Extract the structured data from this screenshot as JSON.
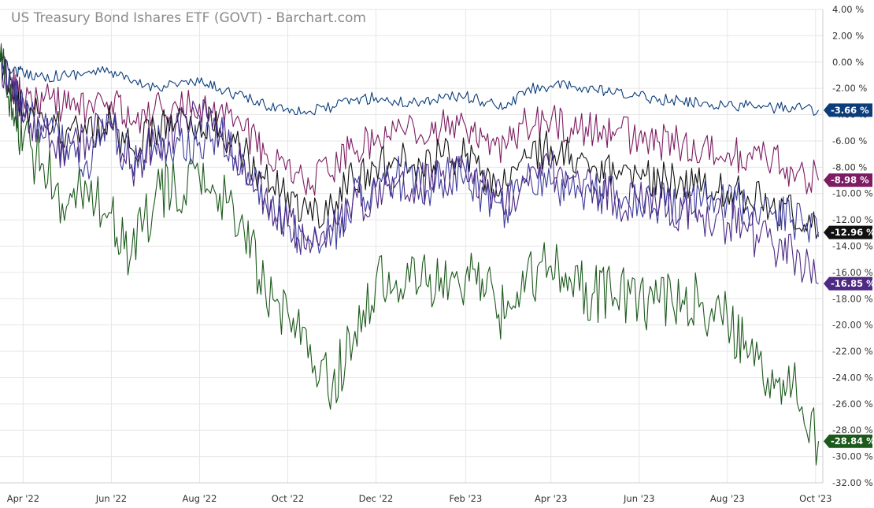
{
  "chart_data": {
    "type": "line",
    "title": "US Treasury Bond Ishares ETF (GOVT) - Barchart.com",
    "xlabel": "",
    "ylabel": "",
    "y_unit": "%",
    "ylim": [
      -32,
      4
    ],
    "yticks": [
      4,
      2,
      0,
      -2,
      -4,
      -6,
      -8,
      -10,
      -12,
      -14,
      -16,
      -18,
      -20,
      -22,
      -24,
      -26,
      -28,
      -30,
      -32
    ],
    "ytick_labels": [
      "4.00 %",
      "2.00 %",
      "0.00 %",
      "-2.00 %",
      "-4.00 %",
      "-6.00 %",
      "-8.00 %",
      "-10.00 %",
      "-12.00 %",
      "-14.00 %",
      "-16.00 %",
      "-18.00 %",
      "-20.00 %",
      "-22.00 %",
      "-24.00 %",
      "-26.00 %",
      "-28.00 %",
      "-30.00 %",
      "-32.00 %"
    ],
    "xlim": [
      "2022-03-16",
      "2023-10-06"
    ],
    "xticks": [
      "2022-04-01",
      "2022-06-01",
      "2022-08-01",
      "2022-10-01",
      "2022-12-01",
      "2023-02-01",
      "2023-04-01",
      "2023-06-01",
      "2023-08-01",
      "2023-10-01"
    ],
    "xtick_labels": [
      "Apr '22",
      "Jun '22",
      "Aug '22",
      "Oct '22",
      "Dec '22",
      "Feb '23",
      "Apr '23",
      "Jun '23",
      "Aug '23",
      "Oct '23"
    ],
    "grid": true,
    "legend": "none",
    "series": [
      {
        "color": "#0b3d7a",
        "last_label": "-3.66 %",
        "x": [
          "2022-03-16",
          "2022-03-25",
          "2022-04-01",
          "2022-04-15",
          "2022-05-01",
          "2022-05-15",
          "2022-06-01",
          "2022-06-15",
          "2022-07-01",
          "2022-07-15",
          "2022-08-01",
          "2022-08-15",
          "2022-09-01",
          "2022-09-15",
          "2022-10-01",
          "2022-10-15",
          "2022-11-01",
          "2022-11-15",
          "2022-12-01",
          "2022-12-15",
          "2023-01-01",
          "2023-01-15",
          "2023-02-01",
          "2023-02-15",
          "2023-03-01",
          "2023-03-15",
          "2023-04-01",
          "2023-04-15",
          "2023-05-01",
          "2023-05-15",
          "2023-06-01",
          "2023-06-15",
          "2023-07-01",
          "2023-07-15",
          "2023-08-01",
          "2023-08-15",
          "2023-09-01",
          "2023-09-15",
          "2023-10-03"
        ],
        "y": [
          0.0,
          -0.6,
          -0.8,
          -1.1,
          -1.0,
          -0.8,
          -0.7,
          -1.6,
          -1.9,
          -1.6,
          -1.6,
          -2.0,
          -2.7,
          -3.3,
          -3.5,
          -3.8,
          -3.4,
          -2.9,
          -2.7,
          -3.1,
          -3.0,
          -2.7,
          -2.6,
          -3.1,
          -3.5,
          -2.1,
          -1.8,
          -1.9,
          -2.1,
          -2.4,
          -2.6,
          -2.8,
          -3.0,
          -3.1,
          -3.3,
          -3.3,
          -3.5,
          -3.4,
          -3.66
        ]
      },
      {
        "color": "#7d1c62",
        "last_label": "-8.98 %",
        "x": [
          "2022-03-16",
          "2022-03-25",
          "2022-04-01",
          "2022-04-15",
          "2022-05-01",
          "2022-05-15",
          "2022-06-01",
          "2022-06-15",
          "2022-07-01",
          "2022-07-15",
          "2022-08-01",
          "2022-08-15",
          "2022-09-01",
          "2022-09-15",
          "2022-10-01",
          "2022-10-15",
          "2022-11-01",
          "2022-11-15",
          "2022-12-01",
          "2022-12-15",
          "2023-01-01",
          "2023-01-15",
          "2023-02-01",
          "2023-02-15",
          "2023-03-01",
          "2023-03-15",
          "2023-04-01",
          "2023-04-15",
          "2023-05-01",
          "2023-05-15",
          "2023-06-01",
          "2023-06-15",
          "2023-07-01",
          "2023-07-15",
          "2023-08-01",
          "2023-08-15",
          "2023-09-01",
          "2023-09-15",
          "2023-10-03"
        ],
        "y": [
          0.0,
          -1.8,
          -2.8,
          -3.0,
          -3.5,
          -3.7,
          -3.0,
          -4.8,
          -3.5,
          -3.0,
          -3.2,
          -3.6,
          -5.2,
          -7.0,
          -7.5,
          -8.8,
          -8.6,
          -6.5,
          -6.0,
          -5.3,
          -5.5,
          -5.0,
          -4.9,
          -6.0,
          -6.6,
          -4.7,
          -4.5,
          -5.0,
          -5.3,
          -5.6,
          -5.6,
          -6.1,
          -6.3,
          -6.5,
          -6.9,
          -7.1,
          -7.5,
          -8.2,
          -8.98
        ]
      },
      {
        "color": "#111111",
        "last_label": "-12.96 %",
        "x": [
          "2022-03-16",
          "2022-03-25",
          "2022-04-01",
          "2022-04-15",
          "2022-05-01",
          "2022-05-15",
          "2022-06-01",
          "2022-06-15",
          "2022-07-01",
          "2022-07-15",
          "2022-08-01",
          "2022-08-15",
          "2022-09-01",
          "2022-09-15",
          "2022-10-01",
          "2022-10-15",
          "2022-11-01",
          "2022-11-15",
          "2022-12-01",
          "2022-12-15",
          "2023-01-01",
          "2023-01-15",
          "2023-02-01",
          "2023-02-15",
          "2023-03-01",
          "2023-03-15",
          "2023-04-01",
          "2023-04-15",
          "2023-05-01",
          "2023-05-15",
          "2023-06-01",
          "2023-06-15",
          "2023-07-01",
          "2023-07-15",
          "2023-08-01",
          "2023-08-15",
          "2023-09-01",
          "2023-09-15",
          "2023-10-03"
        ],
        "y": [
          0.0,
          -2.5,
          -3.8,
          -4.4,
          -5.2,
          -5.5,
          -4.6,
          -6.6,
          -5.0,
          -4.7,
          -4.5,
          -5.0,
          -6.8,
          -8.9,
          -9.9,
          -11.6,
          -11.0,
          -8.7,
          -8.0,
          -7.4,
          -7.8,
          -7.2,
          -7.2,
          -8.7,
          -9.3,
          -7.3,
          -6.4,
          -7.0,
          -7.9,
          -8.5,
          -8.7,
          -8.9,
          -9.1,
          -9.3,
          -9.8,
          -10.2,
          -10.9,
          -11.6,
          -12.96
        ]
      },
      {
        "color": "#3d3d9e",
        "last_label": "",
        "x": [
          "2022-03-16",
          "2022-03-25",
          "2022-04-01",
          "2022-04-15",
          "2022-05-01",
          "2022-05-15",
          "2022-06-01",
          "2022-06-15",
          "2022-07-01",
          "2022-07-15",
          "2022-08-01",
          "2022-08-15",
          "2022-09-01",
          "2022-09-15",
          "2022-10-01",
          "2022-10-15",
          "2022-11-01",
          "2022-11-15",
          "2022-12-01",
          "2022-12-15",
          "2023-01-01",
          "2023-01-15",
          "2023-02-01",
          "2023-02-15",
          "2023-03-01",
          "2023-03-15",
          "2023-04-01",
          "2023-04-15",
          "2023-05-01",
          "2023-05-15",
          "2023-06-01",
          "2023-06-15",
          "2023-07-01",
          "2023-07-15",
          "2023-08-01",
          "2023-08-15",
          "2023-09-01",
          "2023-09-15",
          "2023-10-03"
        ],
        "y": [
          0.0,
          -1.8,
          -4.0,
          -5.3,
          -6.4,
          -7.5,
          -5.0,
          -7.8,
          -6.2,
          -6.5,
          -6.1,
          -5.4,
          -7.5,
          -10.3,
          -12.4,
          -13.5,
          -13.1,
          -10.5,
          -9.5,
          -8.8,
          -9.5,
          -8.9,
          -8.7,
          -10.1,
          -11.2,
          -9.1,
          -9.3,
          -9.6,
          -10.0,
          -10.4,
          -10.3,
          -10.7,
          -10.9,
          -10.5,
          -10.4,
          -11.0,
          -11.6,
          -12.0,
          -13.3
        ]
      },
      {
        "color": "#4e2a84",
        "last_label": "-16.85 %",
        "x": [
          "2022-03-16",
          "2022-03-25",
          "2022-04-01",
          "2022-04-15",
          "2022-05-01",
          "2022-05-15",
          "2022-06-01",
          "2022-06-15",
          "2022-07-01",
          "2022-07-15",
          "2022-08-01",
          "2022-08-15",
          "2022-09-01",
          "2022-09-15",
          "2022-10-01",
          "2022-10-15",
          "2022-11-01",
          "2022-11-15",
          "2022-12-01",
          "2022-12-15",
          "2023-01-01",
          "2023-01-15",
          "2023-02-01",
          "2023-02-15",
          "2023-03-01",
          "2023-03-15",
          "2023-04-01",
          "2023-04-15",
          "2023-05-01",
          "2023-05-15",
          "2023-06-01",
          "2023-06-15",
          "2023-07-01",
          "2023-07-15",
          "2023-08-01",
          "2023-08-15",
          "2023-09-01",
          "2023-09-15",
          "2023-10-03"
        ],
        "y": [
          0.0,
          -2.8,
          -4.6,
          -5.8,
          -6.8,
          -5.6,
          -5.0,
          -7.9,
          -6.2,
          -5.3,
          -4.1,
          -5.6,
          -7.6,
          -10.2,
          -12.5,
          -13.2,
          -12.9,
          -10.6,
          -10.1,
          -9.3,
          -9.4,
          -8.7,
          -8.4,
          -9.9,
          -10.8,
          -8.9,
          -8.1,
          -8.8,
          -9.5,
          -10.6,
          -10.7,
          -11.0,
          -11.2,
          -11.6,
          -12.2,
          -12.9,
          -13.8,
          -14.4,
          -16.85
        ]
      },
      {
        "color": "#1c5a1c",
        "last_label": "-28.84 %",
        "x": [
          "2022-03-16",
          "2022-03-25",
          "2022-04-01",
          "2022-04-15",
          "2022-05-01",
          "2022-05-15",
          "2022-06-01",
          "2022-06-15",
          "2022-07-01",
          "2022-07-15",
          "2022-08-01",
          "2022-08-15",
          "2022-09-01",
          "2022-09-15",
          "2022-10-01",
          "2022-10-15",
          "2022-11-01",
          "2022-11-15",
          "2022-12-01",
          "2022-12-15",
          "2023-01-01",
          "2023-01-15",
          "2023-02-01",
          "2023-02-15",
          "2023-03-01",
          "2023-03-15",
          "2023-04-01",
          "2023-04-15",
          "2023-05-01",
          "2023-05-15",
          "2023-06-01",
          "2023-06-15",
          "2023-07-01",
          "2023-07-15",
          "2023-08-01",
          "2023-08-15",
          "2023-09-01",
          "2023-09-15",
          "2023-10-03"
        ],
        "y": [
          0.0,
          -3.5,
          -6.1,
          -7.8,
          -11.0,
          -9.5,
          -11.5,
          -14.5,
          -10.5,
          -9.3,
          -8.8,
          -10.0,
          -13.0,
          -16.8,
          -19.0,
          -22.5,
          -24.5,
          -21.5,
          -16.5,
          -16.6,
          -17.0,
          -16.4,
          -16.3,
          -17.5,
          -19.3,
          -16.2,
          -15.5,
          -16.8,
          -17.5,
          -17.9,
          -17.9,
          -18.3,
          -18.1,
          -18.3,
          -19.5,
          -22.5,
          -23.4,
          -24.7,
          -28.84
        ]
      }
    ]
  }
}
